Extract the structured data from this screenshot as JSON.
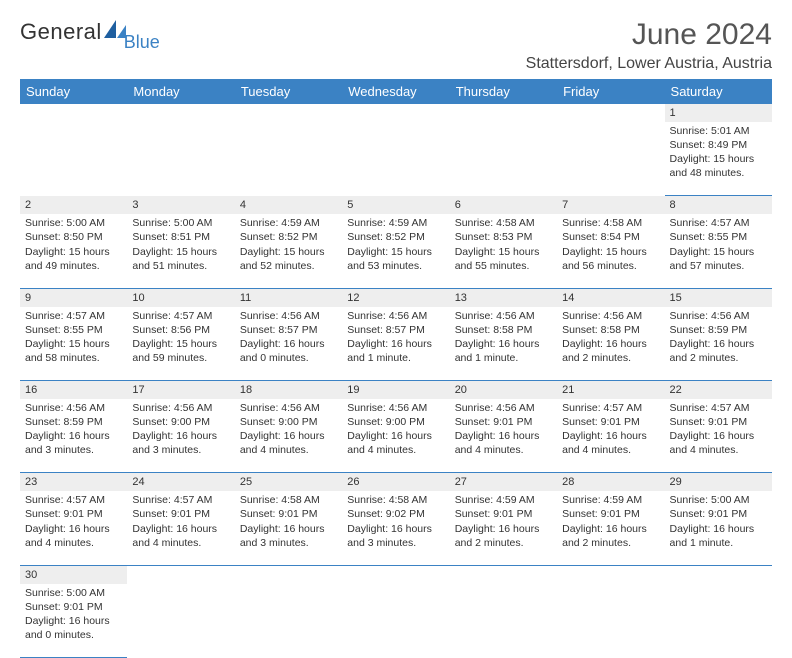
{
  "logo": {
    "general": "General",
    "blue": "Blue"
  },
  "title": "June 2024",
  "location": "Stattersdorf, Lower Austria, Austria",
  "colors": {
    "header_bg": "#3b82c4",
    "header_fg": "#ffffff",
    "daynum_bg": "#eeeeee",
    "border": "#3b82c4",
    "text": "#333333"
  },
  "day_headers": [
    "Sunday",
    "Monday",
    "Tuesday",
    "Wednesday",
    "Thursday",
    "Friday",
    "Saturday"
  ],
  "weeks": [
    {
      "nums": [
        "",
        "",
        "",
        "",
        "",
        "",
        "1"
      ],
      "cells": [
        null,
        null,
        null,
        null,
        null,
        null,
        {
          "sunrise": "5:01 AM",
          "sunset": "8:49 PM",
          "daylight": "15 hours and 48 minutes."
        }
      ]
    },
    {
      "nums": [
        "2",
        "3",
        "4",
        "5",
        "6",
        "7",
        "8"
      ],
      "cells": [
        {
          "sunrise": "5:00 AM",
          "sunset": "8:50 PM",
          "daylight": "15 hours and 49 minutes."
        },
        {
          "sunrise": "5:00 AM",
          "sunset": "8:51 PM",
          "daylight": "15 hours and 51 minutes."
        },
        {
          "sunrise": "4:59 AM",
          "sunset": "8:52 PM",
          "daylight": "15 hours and 52 minutes."
        },
        {
          "sunrise": "4:59 AM",
          "sunset": "8:52 PM",
          "daylight": "15 hours and 53 minutes."
        },
        {
          "sunrise": "4:58 AM",
          "sunset": "8:53 PM",
          "daylight": "15 hours and 55 minutes."
        },
        {
          "sunrise": "4:58 AM",
          "sunset": "8:54 PM",
          "daylight": "15 hours and 56 minutes."
        },
        {
          "sunrise": "4:57 AM",
          "sunset": "8:55 PM",
          "daylight": "15 hours and 57 minutes."
        }
      ]
    },
    {
      "nums": [
        "9",
        "10",
        "11",
        "12",
        "13",
        "14",
        "15"
      ],
      "cells": [
        {
          "sunrise": "4:57 AM",
          "sunset": "8:55 PM",
          "daylight": "15 hours and 58 minutes."
        },
        {
          "sunrise": "4:57 AM",
          "sunset": "8:56 PM",
          "daylight": "15 hours and 59 minutes."
        },
        {
          "sunrise": "4:56 AM",
          "sunset": "8:57 PM",
          "daylight": "16 hours and 0 minutes."
        },
        {
          "sunrise": "4:56 AM",
          "sunset": "8:57 PM",
          "daylight": "16 hours and 1 minute."
        },
        {
          "sunrise": "4:56 AM",
          "sunset": "8:58 PM",
          "daylight": "16 hours and 1 minute."
        },
        {
          "sunrise": "4:56 AM",
          "sunset": "8:58 PM",
          "daylight": "16 hours and 2 minutes."
        },
        {
          "sunrise": "4:56 AM",
          "sunset": "8:59 PM",
          "daylight": "16 hours and 2 minutes."
        }
      ]
    },
    {
      "nums": [
        "16",
        "17",
        "18",
        "19",
        "20",
        "21",
        "22"
      ],
      "cells": [
        {
          "sunrise": "4:56 AM",
          "sunset": "8:59 PM",
          "daylight": "16 hours and 3 minutes."
        },
        {
          "sunrise": "4:56 AM",
          "sunset": "9:00 PM",
          "daylight": "16 hours and 3 minutes."
        },
        {
          "sunrise": "4:56 AM",
          "sunset": "9:00 PM",
          "daylight": "16 hours and 4 minutes."
        },
        {
          "sunrise": "4:56 AM",
          "sunset": "9:00 PM",
          "daylight": "16 hours and 4 minutes."
        },
        {
          "sunrise": "4:56 AM",
          "sunset": "9:01 PM",
          "daylight": "16 hours and 4 minutes."
        },
        {
          "sunrise": "4:57 AM",
          "sunset": "9:01 PM",
          "daylight": "16 hours and 4 minutes."
        },
        {
          "sunrise": "4:57 AM",
          "sunset": "9:01 PM",
          "daylight": "16 hours and 4 minutes."
        }
      ]
    },
    {
      "nums": [
        "23",
        "24",
        "25",
        "26",
        "27",
        "28",
        "29"
      ],
      "cells": [
        {
          "sunrise": "4:57 AM",
          "sunset": "9:01 PM",
          "daylight": "16 hours and 4 minutes."
        },
        {
          "sunrise": "4:57 AM",
          "sunset": "9:01 PM",
          "daylight": "16 hours and 4 minutes."
        },
        {
          "sunrise": "4:58 AM",
          "sunset": "9:01 PM",
          "daylight": "16 hours and 3 minutes."
        },
        {
          "sunrise": "4:58 AM",
          "sunset": "9:02 PM",
          "daylight": "16 hours and 3 minutes."
        },
        {
          "sunrise": "4:59 AM",
          "sunset": "9:01 PM",
          "daylight": "16 hours and 2 minutes."
        },
        {
          "sunrise": "4:59 AM",
          "sunset": "9:01 PM",
          "daylight": "16 hours and 2 minutes."
        },
        {
          "sunrise": "5:00 AM",
          "sunset": "9:01 PM",
          "daylight": "16 hours and 1 minute."
        }
      ]
    },
    {
      "nums": [
        "30",
        "",
        "",
        "",
        "",
        "",
        ""
      ],
      "cells": [
        {
          "sunrise": "5:00 AM",
          "sunset": "9:01 PM",
          "daylight": "16 hours and 0 minutes."
        },
        null,
        null,
        null,
        null,
        null,
        null
      ]
    }
  ],
  "labels": {
    "sunrise": "Sunrise: ",
    "sunset": "Sunset: ",
    "daylight": "Daylight: "
  }
}
